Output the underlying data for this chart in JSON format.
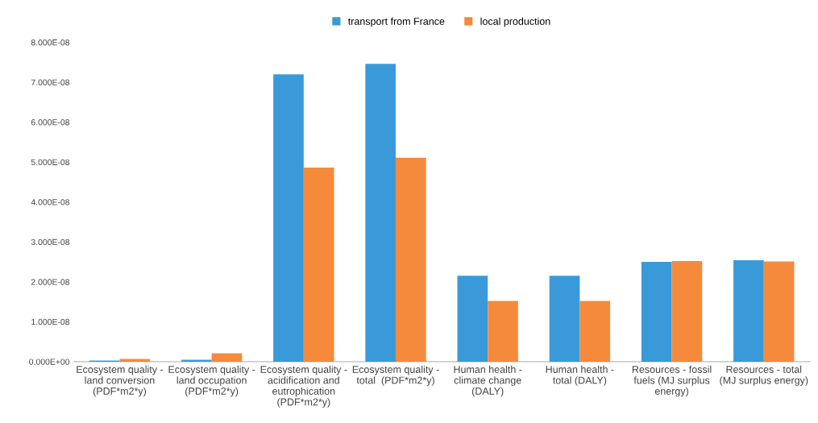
{
  "chart_data": {
    "type": "bar",
    "categories": [
      "Ecosystem quality - land conversion (PDF*m2*y)",
      "Ecosystem quality - land occupation (PDF*m2*y)",
      "Ecosystem quality - acidification and eutrophication (PDF*m2*y)",
      "Ecosystem quality - total  (PDF*m2*y)",
      "Human health - climate change (DALY)",
      "Human health - total (DALY)",
      "Resources - fossil fuels (MJ surplus energy)",
      "Resources - total (MJ surplus energy)"
    ],
    "series": [
      {
        "name": "transport from France",
        "color": "#3a9ad9",
        "values": [
          3e-10,
          5e-10,
          7.2e-08,
          7.46e-08,
          2.15e-08,
          2.15e-08,
          2.5e-08,
          2.54e-08
        ]
      },
      {
        "name": "local production",
        "color": "#f58a3d",
        "values": [
          7e-10,
          2.1e-09,
          4.86e-08,
          5.11e-08,
          1.52e-08,
          1.52e-08,
          2.52e-08,
          2.51e-08
        ]
      }
    ],
    "ylim": [
      0,
      8e-08
    ],
    "yticks": [
      {
        "value": 0,
        "label": "0.000E+00"
      },
      {
        "value": 1e-08,
        "label": "1.000E-08"
      },
      {
        "value": 2e-08,
        "label": "2.000E-08"
      },
      {
        "value": 3e-08,
        "label": "3.000E-08"
      },
      {
        "value": 4e-08,
        "label": "4.000E-08"
      },
      {
        "value": 5e-08,
        "label": "5.000E-08"
      },
      {
        "value": 6e-08,
        "label": "6.000E-08"
      },
      {
        "value": 7e-08,
        "label": "7.000E-08"
      },
      {
        "value": 8e-08,
        "label": "8.000E-08"
      }
    ],
    "grid": false,
    "legend": "top"
  }
}
